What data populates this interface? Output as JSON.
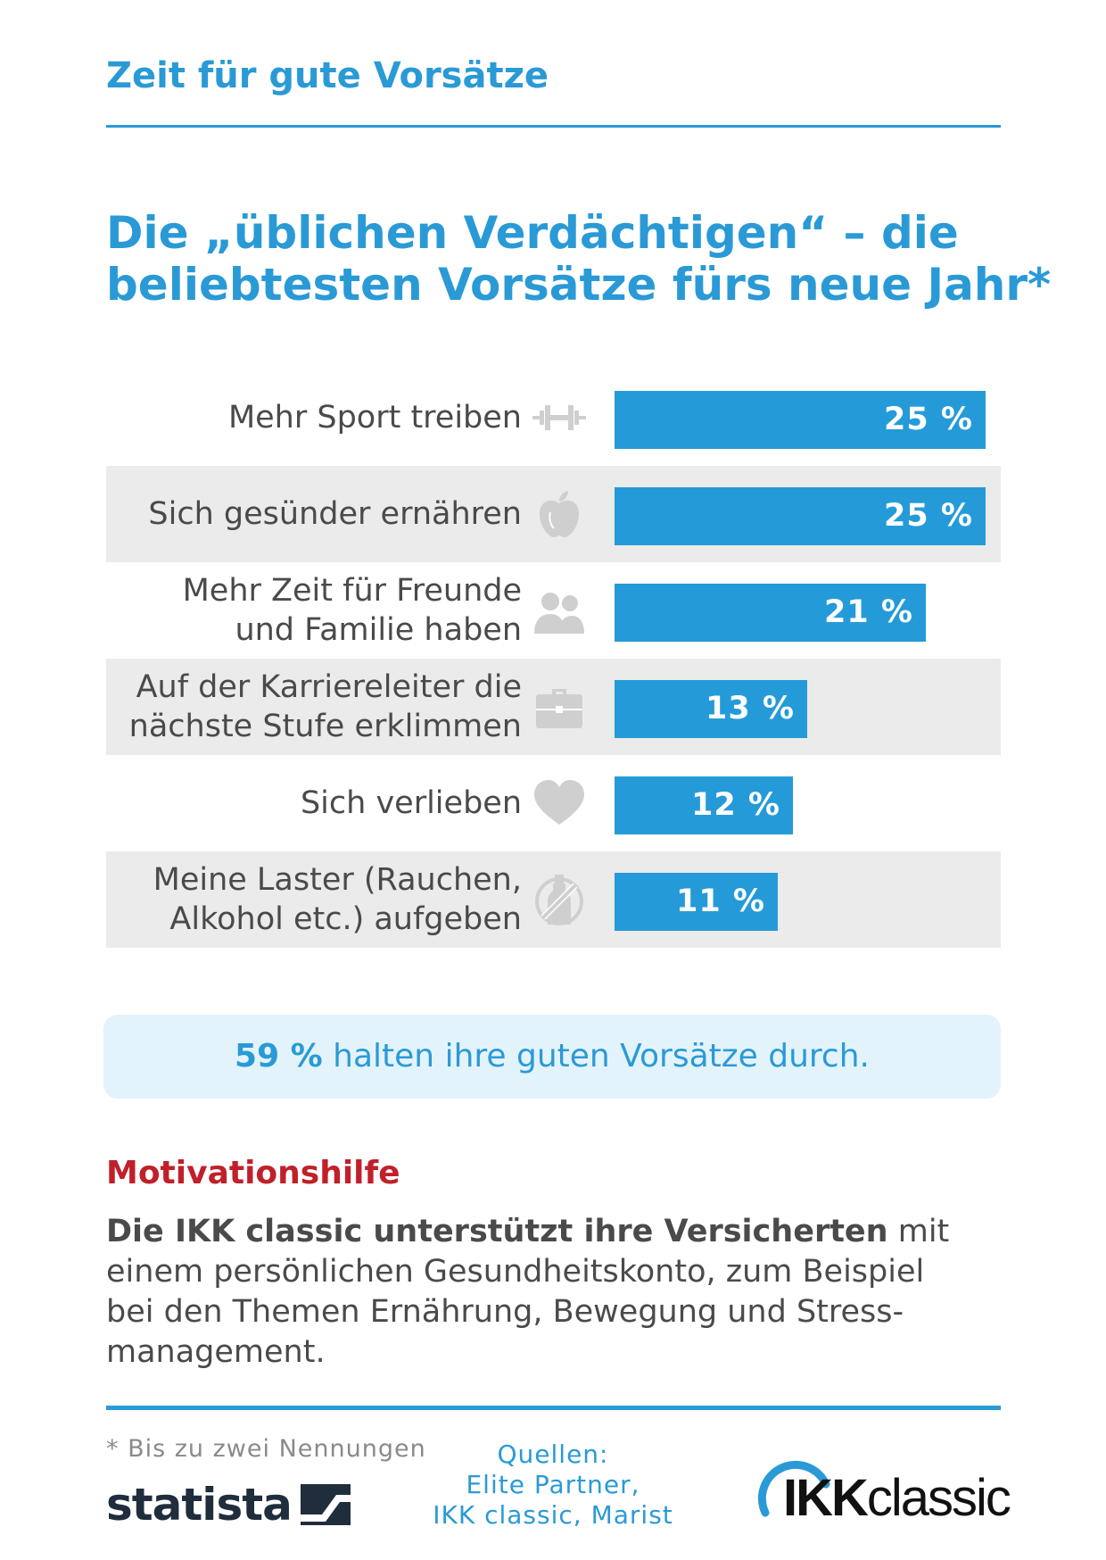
{
  "header": {
    "kicker": "Zeit für gute Vorsätze",
    "title_line1": "Die „üblichen Verdächtigen“ – die",
    "title_line2": "beliebtesten Vorsätze fürs neue Jahr*"
  },
  "chart_data": {
    "type": "bar",
    "orientation": "horizontal",
    "unit": "%",
    "xlim": [
      0,
      25
    ],
    "categories": [
      "Mehr Sport treiben",
      "Sich gesünder ernähren",
      "Mehr Zeit für Freunde und Familie haben",
      "Auf der Karriereleiter die nächste Stufe erklimmen",
      "Sich verlieben",
      "Meine Laster (Rauchen, Alkohol etc.) aufgeben"
    ],
    "values": [
      25,
      25,
      21,
      13,
      12,
      11
    ],
    "value_labels": [
      "25 %",
      "25 %",
      "21 %",
      "13 %",
      "12 %",
      "11 %"
    ],
    "label_lines": [
      [
        "Mehr Sport treiben"
      ],
      [
        "Sich gesünder ernähren"
      ],
      [
        "Mehr Zeit für Freunde",
        "und Familie haben"
      ],
      [
        "Auf der Karriereleiter die",
        "nächste Stufe erklimmen"
      ],
      [
        "Sich verlieben"
      ],
      [
        "Meine Laster (Rauchen,",
        "Alkohol etc.) aufgeben"
      ]
    ],
    "icons": [
      "dumbbell-icon",
      "apple-icon",
      "people-icon",
      "briefcase-icon",
      "heart-icon",
      "no-alcohol-icon"
    ],
    "bar_color": "#249bd8",
    "row_shading": "alternating",
    "grid": false,
    "legend": "none"
  },
  "callout": {
    "value": "59 %",
    "text": " halten ihre guten Vorsätze durch."
  },
  "motivation": {
    "title": "Motivationshilfe",
    "bold_lead": "Die IKK classic unterstützt ihre Versicherten",
    "line1_rest": " mit",
    "line2": "einem persönlichen Gesundheitskonto, zum Beispiel",
    "line3": "bei den Themen Ernährung, Bewegung und Stress-",
    "line4": "management."
  },
  "footer": {
    "footnote": "* Bis zu zwei Nennungen",
    "sources_title": "Quellen:",
    "sources_line1": "Elite Partner,",
    "sources_line2": "IKK classic, Marist",
    "statista_logo": "statista",
    "ikk_logo_bold": "IKK",
    "ikk_logo_light": "classic"
  },
  "colors": {
    "accent": "#2a9ad6",
    "bar": "#249bd8",
    "highlight_red": "#c0202a",
    "row_shade": "#ebebeb",
    "callout_bg": "#e3f3fc",
    "icon_gray": "#cfcfcf"
  }
}
